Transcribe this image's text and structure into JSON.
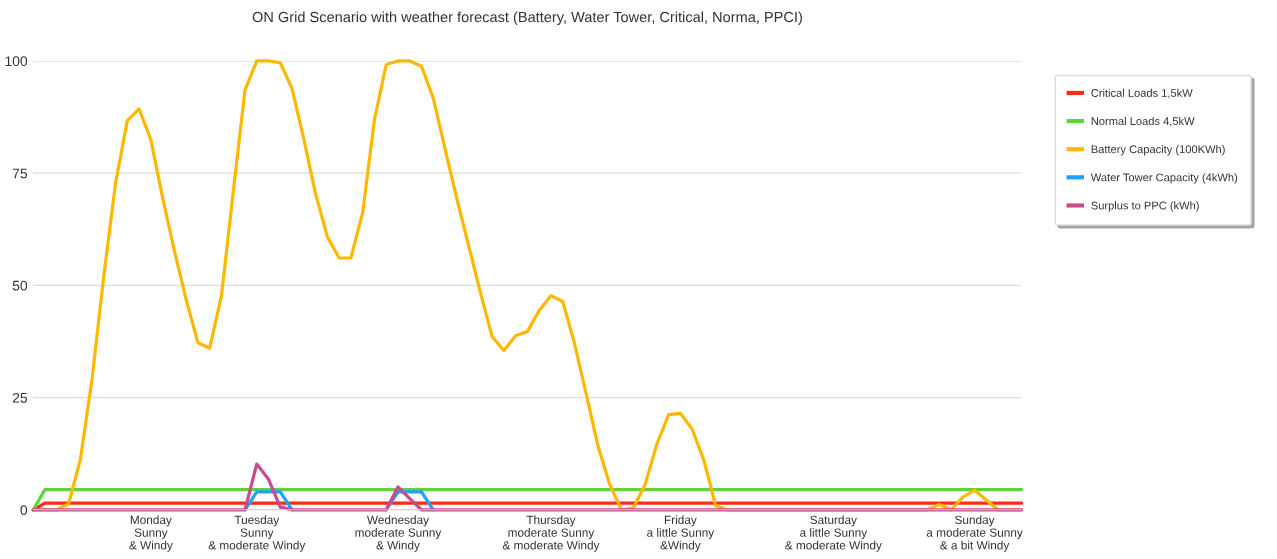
{
  "chart_data": {
    "type": "line",
    "title": "ON Grid Scenario with weather forecast (Battery, Water Tower, Critical, Norma, PPCI)",
    "categories": [
      null,
      null,
      null,
      null,
      null,
      null,
      null,
      null,
      null,
      null,
      "Monday\nSunny\n& Windy",
      null,
      null,
      null,
      null,
      null,
      null,
      null,
      null,
      "Tuesday\nSunny\n& moderate Windy",
      null,
      null,
      null,
      null,
      null,
      null,
      null,
      null,
      null,
      null,
      null,
      "Wednesday\nmoderate Sunny\n& Windy",
      null,
      null,
      null,
      null,
      null,
      null,
      null,
      null,
      null,
      null,
      null,
      null,
      "Thursday\nmoderate Sunny\n& moderate Windy",
      null,
      null,
      null,
      null,
      null,
      null,
      null,
      null,
      null,
      null,
      "Friday\na little Sunny\n&Windy",
      null,
      null,
      null,
      null,
      null,
      null,
      null,
      null,
      null,
      null,
      null,
      null,
      "Saturday\na little Sunny\n& moderate Windy",
      null,
      null,
      null,
      null,
      null,
      null,
      null,
      null,
      null,
      null,
      null,
      "Sunday\na moderate Sunny\n& a bit Windy",
      null,
      null,
      null,
      null
    ],
    "ylim": [
      0,
      100
    ],
    "yticks": [
      0,
      25,
      50,
      75,
      100
    ],
    "grid": "y",
    "legend": "right",
    "marker": "none",
    "line_style": "solid",
    "series": [
      {
        "name": "Critical Loads 1,5kW",
        "color": "#ff2a1a",
        "values": [
          0,
          1.5,
          1.5,
          1.5,
          1.5,
          1.5,
          1.5,
          1.5,
          1.5,
          1.5,
          1.5,
          1.5,
          1.5,
          1.5,
          1.5,
          1.5,
          1.5,
          1.5,
          1.5,
          1.5,
          1.5,
          1.5,
          1.5,
          1.5,
          1.5,
          1.5,
          1.5,
          1.5,
          1.5,
          1.5,
          1.5,
          1.5,
          1.5,
          1.5,
          1.5,
          1.5,
          1.5,
          1.5,
          1.5,
          1.5,
          1.5,
          1.5,
          1.5,
          1.5,
          1.5,
          1.5,
          1.5,
          1.5,
          1.5,
          1.5,
          1.5,
          1.5,
          1.5,
          1.5,
          1.5,
          1.5,
          1.5,
          1.5,
          1.5,
          1.5,
          1.5,
          1.5,
          1.5,
          1.5,
          1.5,
          1.5,
          1.5,
          1.5,
          1.5,
          1.5,
          1.5,
          1.5,
          1.5,
          1.5,
          1.5,
          1.5,
          1.5,
          1.5,
          1.5,
          1.5,
          1.5,
          1.5,
          1.5,
          1.5,
          1.5
        ]
      },
      {
        "name": "Normal Loads 4,5kW",
        "color": "#5fd33c",
        "values": [
          0,
          4.5,
          4.5,
          4.5,
          4.5,
          4.5,
          4.5,
          4.5,
          4.5,
          4.5,
          4.5,
          4.5,
          4.5,
          4.5,
          4.5,
          4.5,
          4.5,
          4.5,
          4.5,
          4.5,
          4.5,
          4.5,
          4.5,
          4.5,
          4.5,
          4.5,
          4.5,
          4.5,
          4.5,
          4.5,
          4.5,
          4.5,
          4.5,
          4.5,
          4.5,
          4.5,
          4.5,
          4.5,
          4.5,
          4.5,
          4.5,
          4.5,
          4.5,
          4.5,
          4.5,
          4.5,
          4.5,
          4.5,
          4.5,
          4.5,
          4.5,
          4.5,
          4.5,
          4.5,
          4.5,
          4.5,
          4.5,
          4.5,
          4.5,
          4.5,
          4.5,
          4.5,
          4.5,
          4.5,
          4.5,
          4.5,
          4.5,
          4.5,
          4.5,
          4.5,
          4.5,
          4.5,
          4.5,
          4.5,
          4.5,
          4.5,
          4.5,
          4.5,
          4.5,
          4.5,
          4.5,
          4.5,
          4.5,
          4.5,
          4.5
        ]
      },
      {
        "name": "Battery Capacity (100KWh)",
        "color": "#ffb800",
        "values": [
          0,
          0,
          0,
          1.3,
          11.1,
          29.1,
          52.1,
          72.8,
          86.7,
          89.3,
          82.4,
          69.5,
          57.7,
          46.8,
          37.2,
          36,
          47.7,
          70.8,
          93.5,
          100,
          100,
          99.6,
          93.8,
          82.6,
          70.4,
          60.8,
          56.1,
          56.1,
          66.2,
          86.9,
          99.2,
          100,
          100,
          98.8,
          91.7,
          80.4,
          69.3,
          58.9,
          48.5,
          38.6,
          35.5,
          38.8,
          39.7,
          44.4,
          47.7,
          46.4,
          37.1,
          25.8,
          14.2,
          5.6,
          0,
          0.4,
          5.6,
          14.6,
          21.2,
          21.5,
          18,
          11,
          0.9,
          0,
          0,
          0,
          0,
          0,
          0,
          0,
          0,
          0,
          0,
          0,
          0,
          0,
          0,
          0,
          0,
          0,
          0,
          1.2,
          0,
          2.8,
          4.4,
          2.2,
          0,
          0,
          0
        ]
      },
      {
        "name": "Water Tower Capacity (4kWh)",
        "color": "#1aa3ff",
        "values": [
          null,
          null,
          null,
          null,
          null,
          null,
          null,
          null,
          null,
          null,
          null,
          null,
          null,
          null,
          null,
          null,
          null,
          null,
          0,
          4,
          4,
          4,
          0,
          null,
          null,
          null,
          null,
          null,
          null,
          null,
          0,
          4,
          4,
          4,
          0,
          null,
          null,
          null,
          null,
          null,
          null,
          null,
          null,
          null,
          null,
          null,
          null,
          null,
          null,
          null,
          null,
          null,
          null,
          null,
          null,
          null,
          null,
          null,
          null,
          null,
          null,
          null,
          null,
          null,
          null,
          null,
          null,
          null,
          null,
          null,
          null,
          null,
          null,
          null,
          null,
          null,
          null,
          null,
          null,
          null,
          null,
          null,
          null,
          null,
          null
        ]
      },
      {
        "name": "Surplus to PPC (kWh)",
        "color": "#c84b8b",
        "values": [
          0,
          0,
          0,
          0,
          0,
          0,
          0,
          0,
          0,
          0,
          0,
          0,
          0,
          0,
          0,
          0,
          0,
          0,
          0,
          10.2,
          6.8,
          0.6,
          0,
          0,
          0,
          0,
          0,
          0,
          0,
          0,
          0,
          5.1,
          2.5,
          0,
          0,
          0,
          0,
          0,
          0,
          0,
          0,
          0,
          0,
          0,
          0,
          0,
          0,
          0,
          0,
          0,
          0,
          0,
          0,
          0,
          0,
          0,
          0,
          0,
          0,
          0,
          0,
          0,
          0,
          0,
          0,
          0,
          0,
          0,
          0,
          0,
          0,
          0,
          0,
          0,
          0,
          0,
          0,
          0,
          0,
          0,
          0,
          0,
          0,
          0,
          0
        ]
      }
    ]
  }
}
